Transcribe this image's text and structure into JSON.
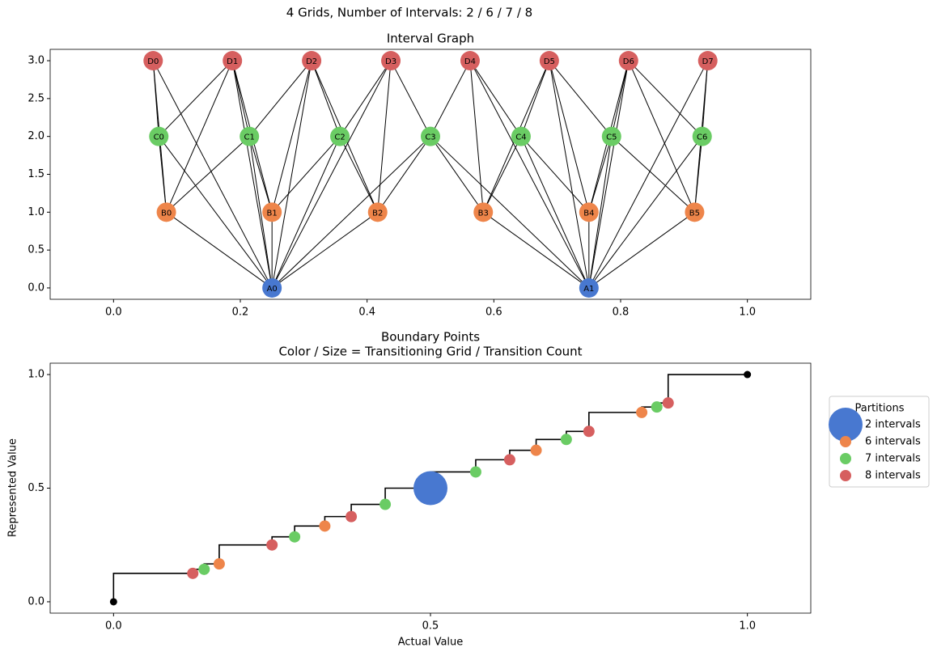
{
  "suptitle": "4 Grids, Number of Intervals: 2 / 6 / 7 / 8",
  "chart_data": [
    {
      "type": "network",
      "title": "Interval Graph",
      "xlim": [
        -0.1,
        1.1
      ],
      "ylim": [
        -0.15,
        3.15
      ],
      "xticks": [
        {
          "value": 0,
          "label": "0.0"
        },
        0.2,
        0.4,
        0.6,
        0.8,
        {
          "value": 1,
          "label": "1.0"
        }
      ],
      "yticks": [
        {
          "value": 0,
          "label": "0.0"
        },
        0.5,
        {
          "value": 1,
          "label": "1.0"
        },
        1.5,
        {
          "value": 2,
          "label": "2.0"
        },
        2.5,
        {
          "value": 3,
          "label": "3.0"
        }
      ],
      "groups": [
        {
          "color": "#4878d0",
          "y": 0,
          "nodes": [
            {
              "label": "A0",
              "x": 0.25
            },
            {
              "label": "A1",
              "x": 0.75
            }
          ]
        },
        {
          "color": "#ee854a",
          "y": 1,
          "nodes": [
            {
              "label": "B0",
              "x": 0.0833
            },
            {
              "label": "B1",
              "x": 0.25
            },
            {
              "label": "B2",
              "x": 0.4167
            },
            {
              "label": "B3",
              "x": 0.5833
            },
            {
              "label": "B4",
              "x": 0.75
            },
            {
              "label": "B5",
              "x": 0.9167
            }
          ]
        },
        {
          "color": "#6acc64",
          "y": 2,
          "nodes": [
            {
              "label": "C0",
              "x": 0.0714
            },
            {
              "label": "C1",
              "x": 0.2143
            },
            {
              "label": "C2",
              "x": 0.3571
            },
            {
              "label": "C3",
              "x": 0.5
            },
            {
              "label": "C4",
              "x": 0.6429
            },
            {
              "label": "C5",
              "x": 0.7857
            },
            {
              "label": "C6",
              "x": 0.9286
            }
          ]
        },
        {
          "color": "#d65f5f",
          "y": 3,
          "nodes": [
            {
              "label": "D0",
              "x": 0.0625
            },
            {
              "label": "D1",
              "x": 0.1875
            },
            {
              "label": "D2",
              "x": 0.3125
            },
            {
              "label": "D3",
              "x": 0.4375
            },
            {
              "label": "D4",
              "x": 0.5625
            },
            {
              "label": "D5",
              "x": 0.6875
            },
            {
              "label": "D6",
              "x": 0.8125
            },
            {
              "label": "D7",
              "x": 0.9375
            }
          ]
        }
      ],
      "edges": [
        [
          "A0",
          "B0"
        ],
        [
          "A0",
          "B1"
        ],
        [
          "A0",
          "B2"
        ],
        [
          "A1",
          "B3"
        ],
        [
          "A1",
          "B4"
        ],
        [
          "A1",
          "B5"
        ],
        [
          "A0",
          "C0"
        ],
        [
          "A0",
          "C1"
        ],
        [
          "A0",
          "C2"
        ],
        [
          "A0",
          "C3"
        ],
        [
          "A1",
          "C3"
        ],
        [
          "A1",
          "C4"
        ],
        [
          "A1",
          "C5"
        ],
        [
          "A1",
          "C6"
        ],
        [
          "A0",
          "D0"
        ],
        [
          "A0",
          "D1"
        ],
        [
          "A0",
          "D2"
        ],
        [
          "A0",
          "D3"
        ],
        [
          "A1",
          "D4"
        ],
        [
          "A1",
          "D5"
        ],
        [
          "A1",
          "D6"
        ],
        [
          "A1",
          "D7"
        ],
        [
          "B0",
          "C0"
        ],
        [
          "B0",
          "C1"
        ],
        [
          "B1",
          "C1"
        ],
        [
          "B1",
          "C2"
        ],
        [
          "B2",
          "C2"
        ],
        [
          "B2",
          "C3"
        ],
        [
          "B3",
          "C3"
        ],
        [
          "B3",
          "C4"
        ],
        [
          "B4",
          "C4"
        ],
        [
          "B4",
          "C5"
        ],
        [
          "B5",
          "C5"
        ],
        [
          "B5",
          "C6"
        ],
        [
          "B0",
          "D0"
        ],
        [
          "B0",
          "D1"
        ],
        [
          "B1",
          "D1"
        ],
        [
          "B1",
          "D2"
        ],
        [
          "B2",
          "D2"
        ],
        [
          "B2",
          "D3"
        ],
        [
          "B3",
          "D4"
        ],
        [
          "B3",
          "D5"
        ],
        [
          "B4",
          "D5"
        ],
        [
          "B4",
          "D6"
        ],
        [
          "B5",
          "D6"
        ],
        [
          "B5",
          "D7"
        ],
        [
          "C0",
          "D0"
        ],
        [
          "C0",
          "D1"
        ],
        [
          "C1",
          "D1"
        ],
        [
          "C1",
          "D2"
        ],
        [
          "C2",
          "D2"
        ],
        [
          "C2",
          "D3"
        ],
        [
          "C3",
          "D3"
        ],
        [
          "C3",
          "D4"
        ],
        [
          "C4",
          "D4"
        ],
        [
          "C4",
          "D5"
        ],
        [
          "C5",
          "D5"
        ],
        [
          "C5",
          "D6"
        ],
        [
          "C6",
          "D6"
        ],
        [
          "C6",
          "D7"
        ]
      ]
    },
    {
      "type": "step-scatter",
      "title": [
        "Boundary Points",
        "Color / Size = Transitioning Grid / Transition Count"
      ],
      "x_label": "Actual Value",
      "y_label": "Represented Value",
      "xlim": [
        -0.1,
        1.1
      ],
      "ylim": [
        -0.05,
        1.05
      ],
      "xticks": [
        {
          "value": 0,
          "label": "0.0"
        },
        0.5,
        {
          "value": 1,
          "label": "1.0"
        }
      ],
      "yticks": [
        {
          "value": 0,
          "label": "0.0"
        },
        0.5,
        {
          "value": 1,
          "label": "1.0"
        }
      ],
      "line": {
        "color": "#000000",
        "x": [
          0,
          0.125,
          0.1429,
          0.1667,
          0.25,
          0.2857,
          0.3333,
          0.375,
          0.4286,
          0.5,
          0.5714,
          0.625,
          0.6667,
          0.7143,
          0.75,
          0.8333,
          0.8571,
          0.875,
          1
        ],
        "values": [
          0,
          0.125,
          0.1429,
          0.1667,
          0.25,
          0.2857,
          0.3333,
          0.375,
          0.4286,
          0.5,
          0.5714,
          0.625,
          0.6667,
          0.7143,
          0.75,
          0.8333,
          0.8571,
          0.875,
          1
        ]
      },
      "endpoints": {
        "color": "#000000",
        "x": [
          0,
          1
        ],
        "values": [
          0,
          1
        ]
      },
      "legend_title": "Partitions",
      "series": [
        {
          "name": "2 intervals",
          "color": "#4878d0",
          "x": [
            0.5
          ],
          "values": [
            0.5
          ],
          "sizes": [
            3
          ]
        },
        {
          "name": "6 intervals",
          "color": "#ee854a",
          "x": [
            0.1667,
            0.3333,
            0.6667,
            0.8333
          ],
          "values": [
            0.1667,
            0.3333,
            0.6667,
            0.8333
          ],
          "sizes": [
            1,
            1,
            1,
            1
          ]
        },
        {
          "name": "7 intervals",
          "color": "#6acc64",
          "x": [
            0.1429,
            0.2857,
            0.4286,
            0.5714,
            0.7143,
            0.8571
          ],
          "values": [
            0.1429,
            0.2857,
            0.4286,
            0.5714,
            0.7143,
            0.8571
          ],
          "sizes": [
            1,
            1,
            1,
            1,
            1,
            1
          ]
        },
        {
          "name": "8 intervals",
          "color": "#d65f5f",
          "x": [
            0.125,
            0.25,
            0.375,
            0.625,
            0.75,
            0.875
          ],
          "values": [
            0.125,
            0.25,
            0.375,
            0.625,
            0.75,
            0.875
          ],
          "sizes": [
            1,
            1,
            1,
            1,
            1,
            1
          ]
        }
      ]
    }
  ]
}
